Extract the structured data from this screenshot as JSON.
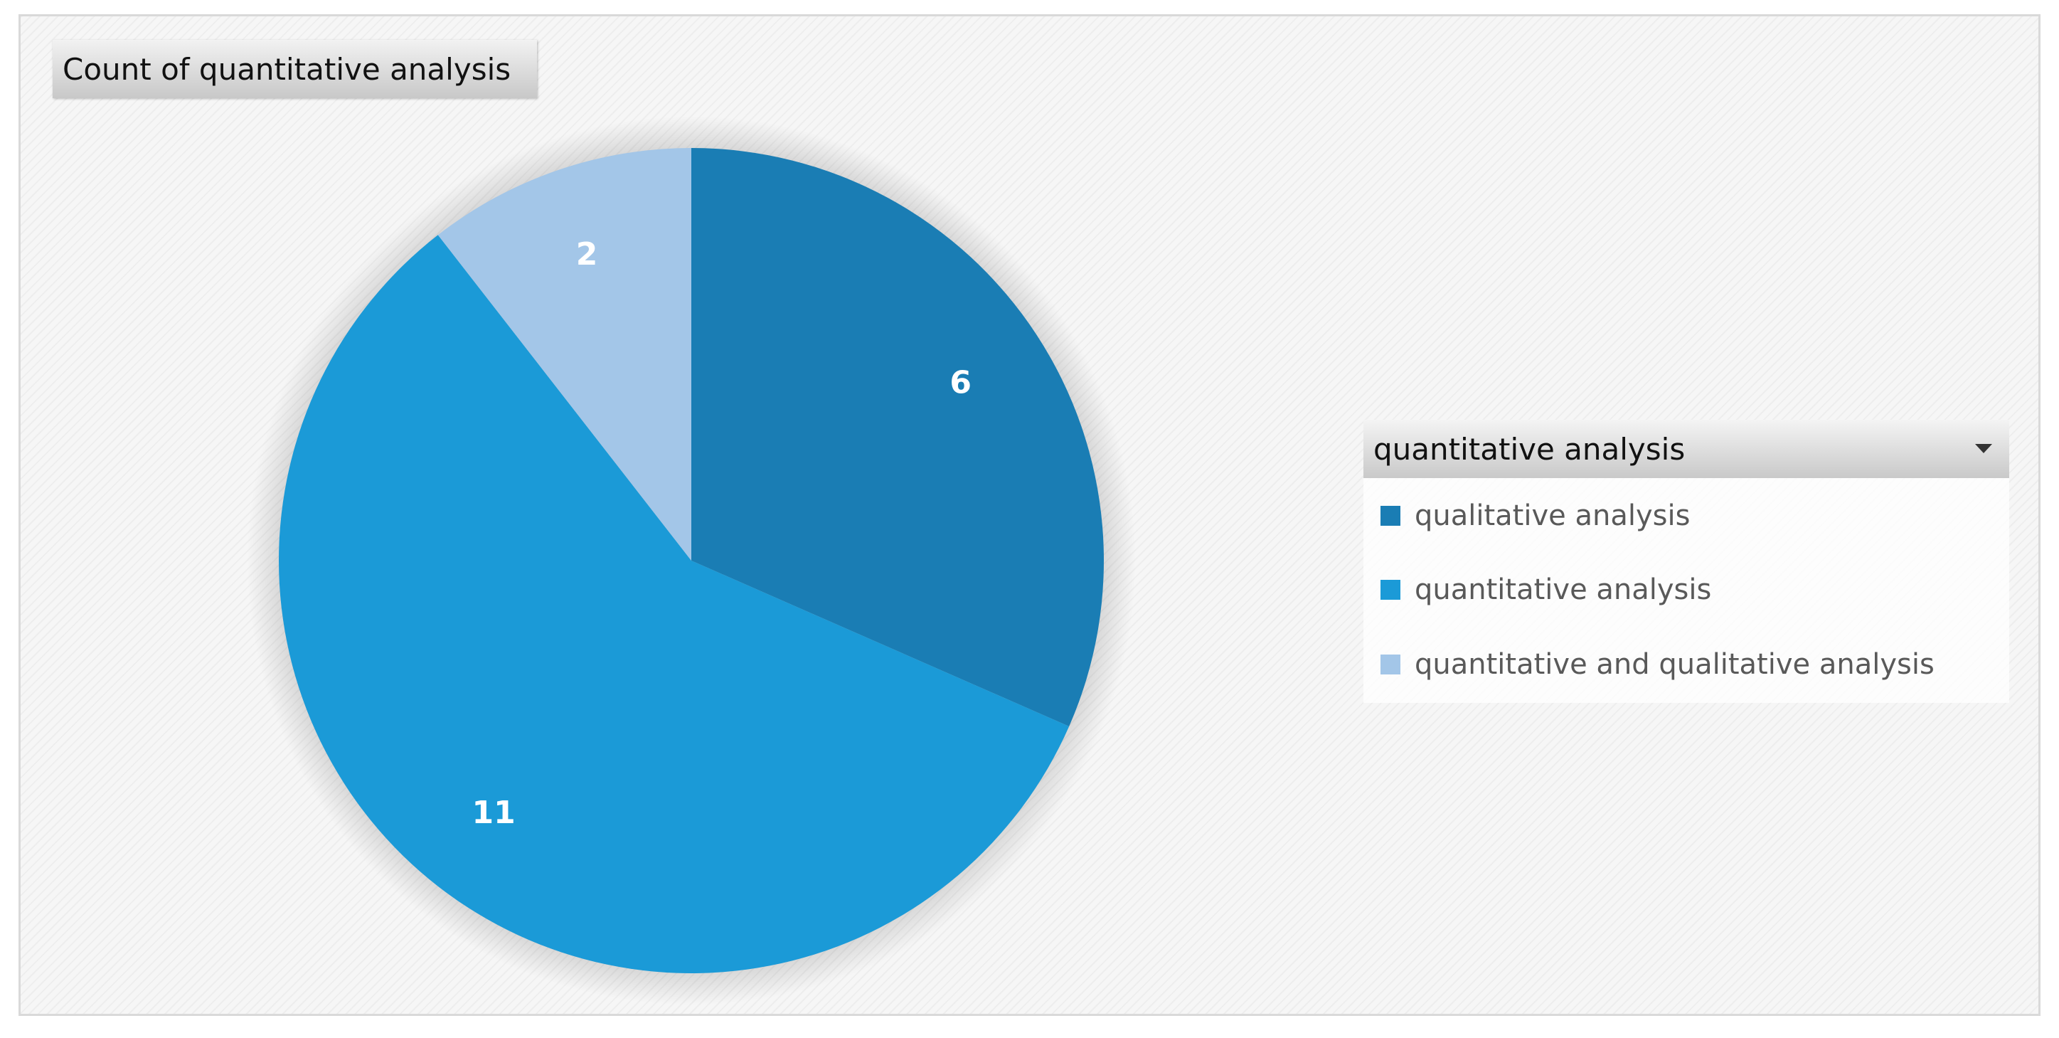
{
  "field_button": {
    "label": "Count of quantitative analysis"
  },
  "legend": {
    "title": "quantitative analysis",
    "dropdown_icon": "chevron-down-icon"
  },
  "chart_data": {
    "type": "pie",
    "title": "",
    "categories": [
      "qualitative analysis",
      "quantitative analysis",
      "quantitative and qualitative analysis"
    ],
    "values": [
      6,
      11,
      2
    ],
    "colors": [
      "#1a7db4",
      "#1b9ad7",
      "#a3c6e8"
    ],
    "data_labels": [
      "6",
      "11",
      "2"
    ],
    "start_angle_deg": 0,
    "direction": "clockwise",
    "legend_position": "right"
  }
}
